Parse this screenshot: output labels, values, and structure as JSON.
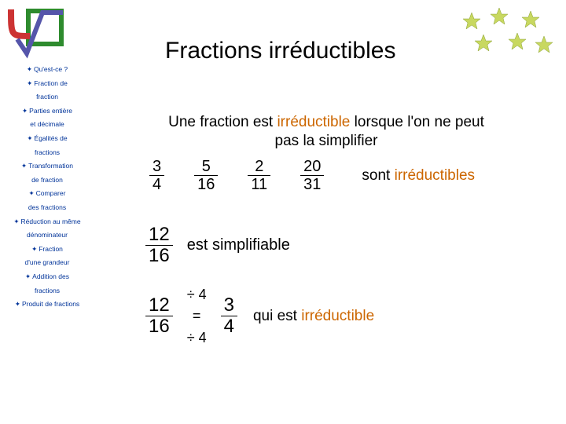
{
  "colors": {
    "accent": "#cc6600",
    "sidebar_text": "#003399",
    "body_text": "#000000",
    "bg": "#ffffff"
  },
  "title": "Fractions irréductibles",
  "sidebar": {
    "items": [
      "Qu'est-ce ?",
      "Fraction de",
      "fraction",
      "Parties entière",
      "et décimale",
      "Égalités de",
      "fractions",
      "Transformation",
      "de fraction",
      "Comparer",
      "des fractions",
      "Réduction au même",
      "dénominateur",
      "Fraction",
      "d'une grandeur",
      "Addition des",
      "fractions",
      "Produit de fractions"
    ],
    "bulleted": [
      0,
      1,
      3,
      5,
      7,
      9,
      11,
      13,
      15,
      17
    ]
  },
  "main": {
    "line1_a": "Une fraction est ",
    "line1_b": "irréductible",
    "line1_c": " lorsque l'on ne peut",
    "line2": "pas la simplifier",
    "fracs": [
      {
        "n": "3",
        "d": "4"
      },
      {
        "n": "5",
        "d": "16"
      },
      {
        "n": "2",
        "d": "11"
      },
      {
        "n": "20",
        "d": "31"
      }
    ],
    "suffix_a": "sont ",
    "suffix_b": "irréductibles",
    "simpl_frac": {
      "n": "12",
      "d": "16"
    },
    "simpl_text": "est simplifiable",
    "calc": {
      "left": {
        "n": "12",
        "d": "16"
      },
      "div_top": "÷  4",
      "eq": "=",
      "div_bot": "÷  4",
      "right": {
        "n": "3",
        "d": "4"
      }
    },
    "qui_a": "qui est ",
    "qui_b": "irréductible"
  }
}
